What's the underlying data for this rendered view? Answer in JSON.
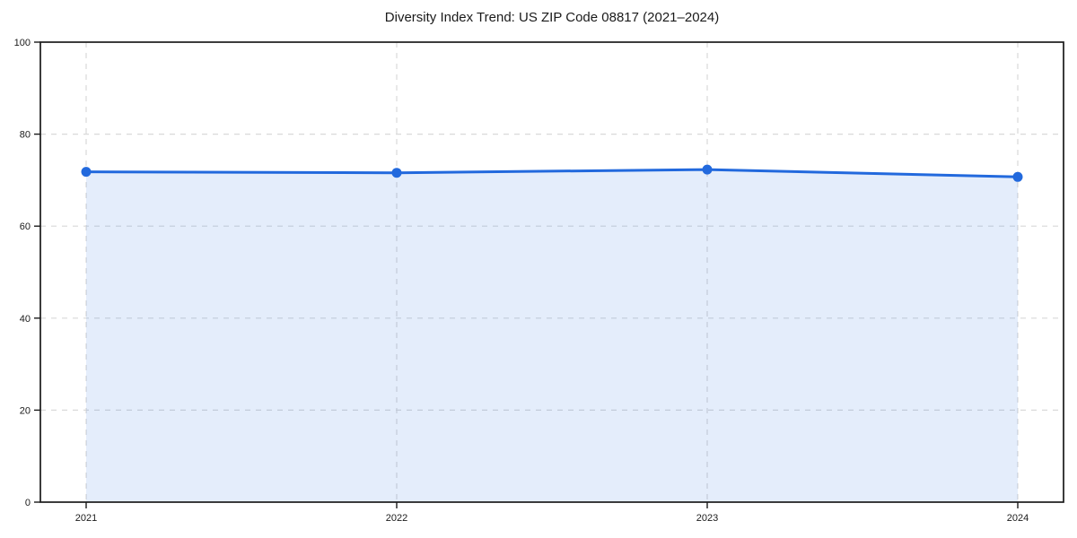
{
  "chart_data": {
    "type": "area",
    "title": "Diversity Index Trend: US ZIP Code 08817 (2021–2024)",
    "x": [
      "2021",
      "2022",
      "2023",
      "2024"
    ],
    "series": [
      {
        "name": "Diversity Index",
        "values": [
          71.8,
          71.6,
          72.3,
          70.7
        ]
      }
    ],
    "ylim": [
      0,
      100
    ],
    "yticks": [
      0,
      20,
      40,
      60,
      80,
      100
    ],
    "grid": true,
    "grid_style": "dashed",
    "legend": false,
    "xlabel": "",
    "ylabel": "",
    "colors": {
      "line": "#2269dd",
      "marker": "#2269dd",
      "fill": "rgba(34,105,221,0.12)",
      "grid": "#d9d9d9",
      "axis": "#1a1a1a",
      "text": "#1a1a1a"
    }
  }
}
